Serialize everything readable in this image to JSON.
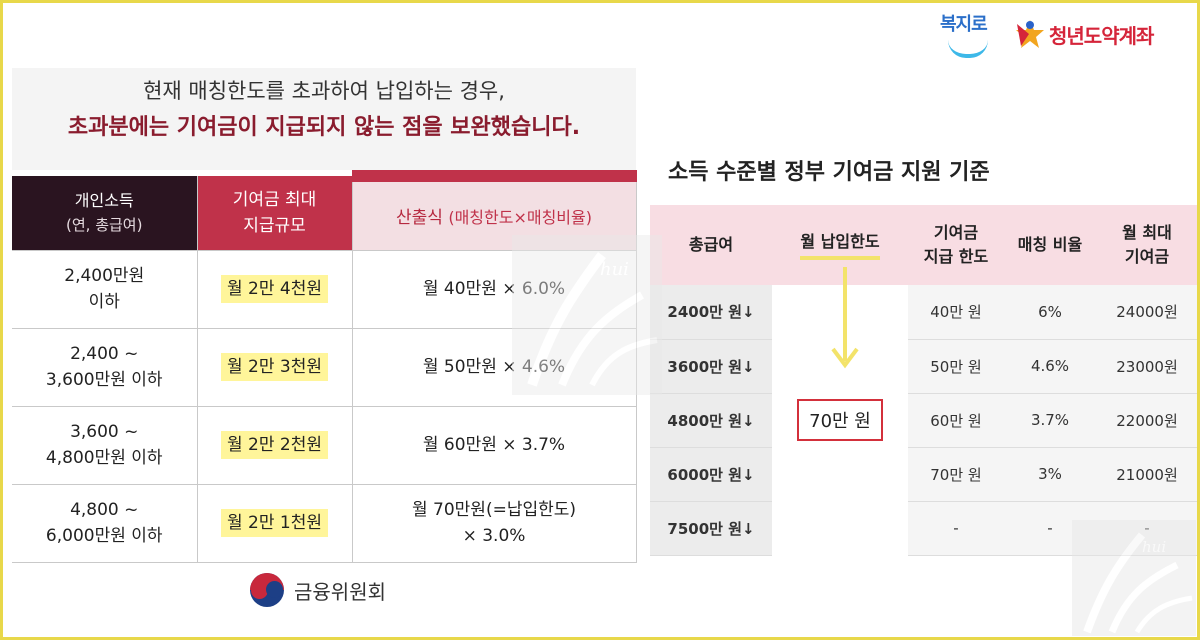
{
  "left": {
    "header_line1": "현재 매칭한도를 초과하여 납입하는 경우,",
    "header_line2": "초과분에는 기여금이 지급되지 않는 점을 보완했습니다.",
    "col_income": "개인소득",
    "col_income_sub": "(연, 총급여)",
    "col_max_1": "기여금 최대",
    "col_max_2": "지급규모",
    "col_formula": "산출식",
    "col_formula_paren": "(매칭한도×매칭비율)",
    "rows": [
      {
        "income_1": "2,400만원",
        "income_2": "이하",
        "max": "월 2만 4천원",
        "formula_1": "월 40만원 × 6.0%",
        "formula_2": ""
      },
      {
        "income_1": "2,400 ~",
        "income_2": "3,600만원 이하",
        "max": "월 2만 3천원",
        "formula_1": "월 50만원 × 4.6%",
        "formula_2": ""
      },
      {
        "income_1": "3,600 ~",
        "income_2": "4,800만원 이하",
        "max": "월 2만 2천원",
        "formula_1": "월 60만원 × 3.7%",
        "formula_2": ""
      },
      {
        "income_1": "4,800 ~",
        "income_2": "6,000만원 이하",
        "max": "월 2만 1천원",
        "formula_1": "월 70만원(=납입한도)",
        "formula_2": "× 3.0%"
      }
    ],
    "source": "금융위원회"
  },
  "logos": {
    "bokjiro": "복지로",
    "youth": "청년도약계좌"
  },
  "right": {
    "title": "소득 수준별 정부 기여금 지원 기준",
    "headers": {
      "income": "총급여",
      "pay_limit": "월 납입한도",
      "contrib_1": "기여금",
      "contrib_2": "지급 한도",
      "ratio": "매칭 비율",
      "max_1": "월 최대",
      "max_2": "기여금"
    },
    "pay_limit_value": "70만 원",
    "rows": [
      {
        "income": "2400만 원↓",
        "contrib": "40만 원",
        "ratio": "6%",
        "max": "24000원"
      },
      {
        "income": "3600만 원↓",
        "contrib": "50만 원",
        "ratio": "4.6%",
        "max": "23000원"
      },
      {
        "income": "4800만 원↓",
        "contrib": "60만 원",
        "ratio": "3.7%",
        "max": "22000원"
      },
      {
        "income": "6000만 원↓",
        "contrib": "70만 원",
        "ratio": "3%",
        "max": "21000원"
      },
      {
        "income": "7500만 원↓",
        "contrib": "-",
        "ratio": "-",
        "max": "-"
      }
    ]
  },
  "watermark": "hui",
  "colors": {
    "frame": "#e8d84a",
    "dark_header": "#2a1420",
    "accent_red": "#c0324a",
    "highlight": "#fff59a",
    "right_header_bg": "#f8dde3"
  }
}
